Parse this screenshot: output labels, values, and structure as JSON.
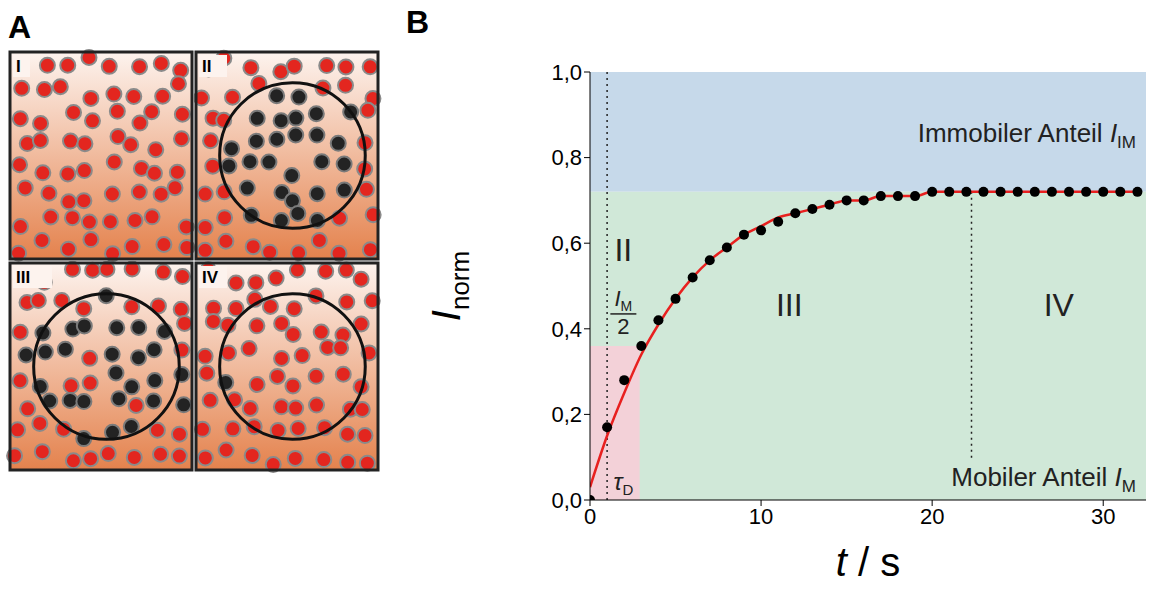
{
  "panel_a": {
    "letter": "A",
    "tiles": [
      "I",
      "II",
      "III",
      "IV"
    ]
  },
  "chart_data": {
    "letter": "B",
    "type": "line",
    "xlabel": {
      "symbol": "t",
      "unit": "/ s"
    },
    "ylabel": {
      "symbol": "I",
      "sub": "norm"
    },
    "x": [
      0,
      1,
      2,
      3,
      4,
      5,
      6,
      7,
      8,
      9,
      10,
      11,
      12,
      13,
      14,
      15,
      16,
      17,
      18,
      19,
      20,
      21,
      22,
      23,
      24,
      25,
      26,
      27,
      28,
      29,
      30,
      31,
      32
    ],
    "series": [
      {
        "type": "line",
        "color": "#e8201f",
        "line_style": "solid",
        "values": [
          0.03,
          0.15,
          0.25,
          0.34,
          0.41,
          0.47,
          0.52,
          0.56,
          0.59,
          0.62,
          0.64,
          0.66,
          0.67,
          0.68,
          0.69,
          0.7,
          0.7,
          0.71,
          0.71,
          0.71,
          0.72,
          0.72,
          0.72,
          0.72,
          0.72,
          0.72,
          0.72,
          0.72,
          0.72,
          0.72,
          0.72,
          0.72,
          0.72
        ]
      },
      {
        "type": "scatter",
        "color": "#000000",
        "marker": "circle",
        "values": [
          0.0,
          0.17,
          0.28,
          0.36,
          0.42,
          0.47,
          0.52,
          0.56,
          0.59,
          0.62,
          0.63,
          0.65,
          0.67,
          0.68,
          0.69,
          0.7,
          0.7,
          0.71,
          0.71,
          0.71,
          0.72,
          0.72,
          0.72,
          0.72,
          0.72,
          0.72,
          0.72,
          0.72,
          0.72,
          0.72,
          0.72,
          0.72,
          0.72
        ]
      }
    ],
    "xlim": [
      0,
      32.5
    ],
    "xticks": [
      0,
      10,
      20,
      30
    ],
    "ylim": [
      0,
      1
    ],
    "yticks": [
      {
        "value": 0,
        "label": "0,0"
      },
      {
        "value": 0.2,
        "label": "0,2"
      },
      {
        "value": 0.4,
        "label": "0,4"
      },
      {
        "value": 0.6,
        "label": "0,6"
      },
      {
        "value": 0.8,
        "label": "0,8"
      },
      {
        "value": 1,
        "label": "1,0"
      }
    ],
    "grid": false,
    "mobile_fraction": 0.72,
    "half_mobile_fraction": 0.36,
    "tau_d": 2.9,
    "phase_bounds": [
      1,
      22.3
    ],
    "phase_labels": [
      "II",
      "III",
      "IV"
    ],
    "immobile_label": {
      "text": "Immobiler Anteil",
      "symbol": "I",
      "sub": "IM"
    },
    "mobile_label": {
      "text": "Mobiler Anteil",
      "symbol": "I",
      "sub": "M"
    },
    "half_label": {
      "symbol": "I",
      "sub": "M",
      "denominator": "2"
    },
    "tau_label": {
      "symbol": "τ",
      "sub": "D"
    }
  }
}
